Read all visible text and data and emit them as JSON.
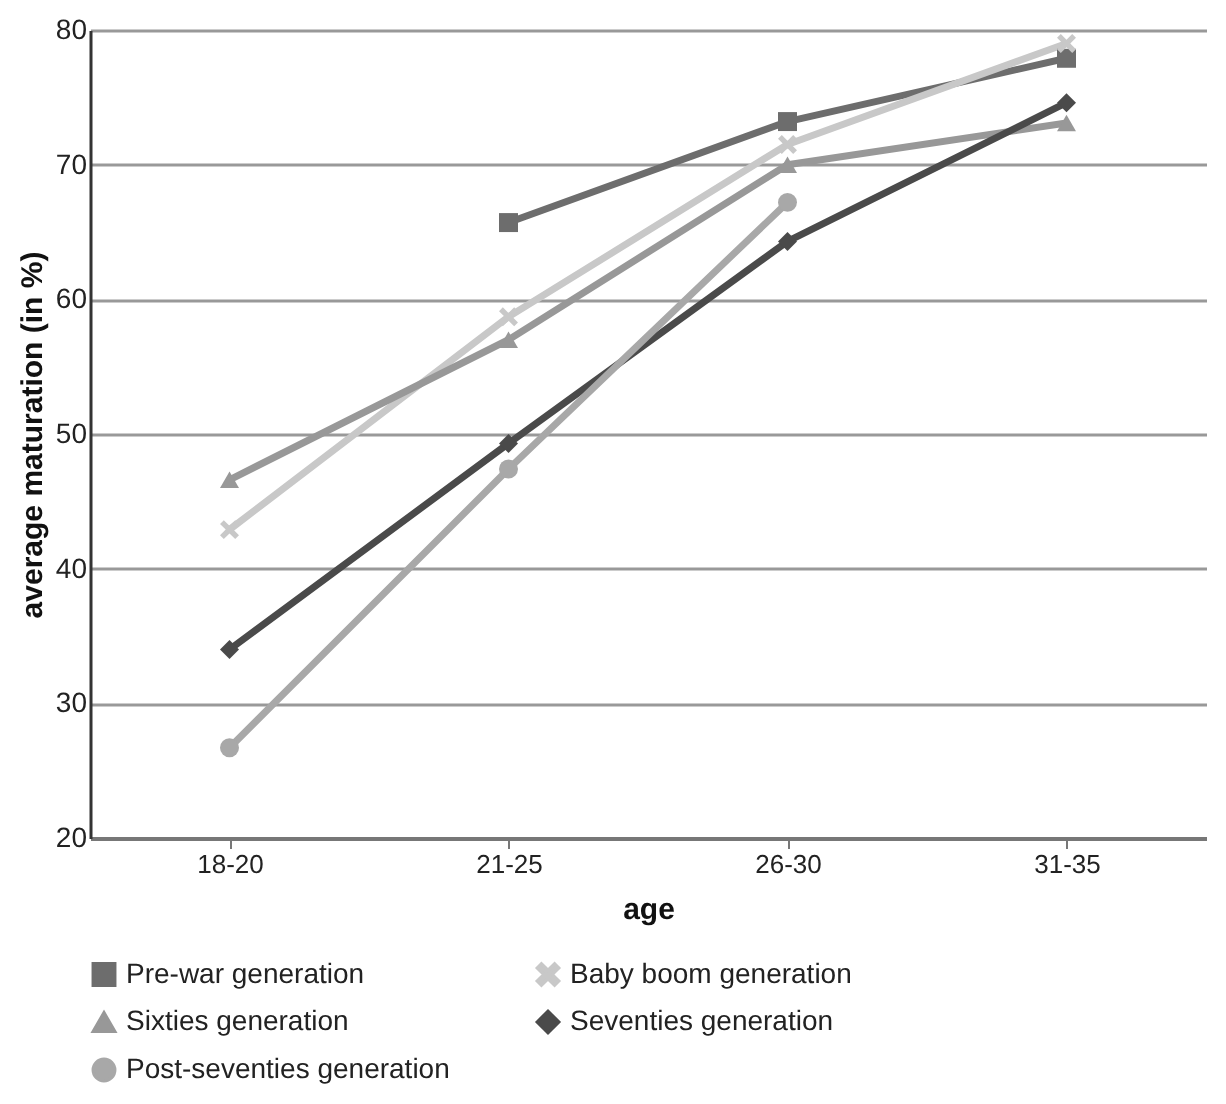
{
  "chart_data": {
    "type": "line",
    "xlabel": "age",
    "ylabel": "average maturation (in %)",
    "categories": [
      "18-20",
      "21-25",
      "26-30",
      "31-35"
    ],
    "ylim": [
      20,
      80
    ],
    "yticks": [
      20,
      30,
      40,
      50,
      60,
      70,
      80
    ],
    "grid": "y",
    "legend": "bottom",
    "line_style": "solid",
    "series": [
      {
        "name": "Pre-war generation",
        "color": "#6d6d6d",
        "marker": "square",
        "values": [
          null,
          65.7,
          73.2,
          77.9
        ]
      },
      {
        "name": "Baby boom generation",
        "color": "#c8c8c8",
        "marker": "cross",
        "values": [
          42.9,
          58.7,
          71.5,
          79
        ]
      },
      {
        "name": "Sixties generation",
        "color": "#989898",
        "marker": "triangle",
        "values": [
          46.6,
          57,
          70,
          73.1
        ]
      },
      {
        "name": "Seventies generation",
        "color": "#4a4a4a",
        "marker": "diamond",
        "values": [
          34,
          49.3,
          64.3,
          74.6
        ]
      },
      {
        "name": "Post-seventies generation",
        "color": "#a8a8a8",
        "marker": "circle",
        "values": [
          26.7,
          47.4,
          67.2,
          null
        ]
      }
    ]
  }
}
